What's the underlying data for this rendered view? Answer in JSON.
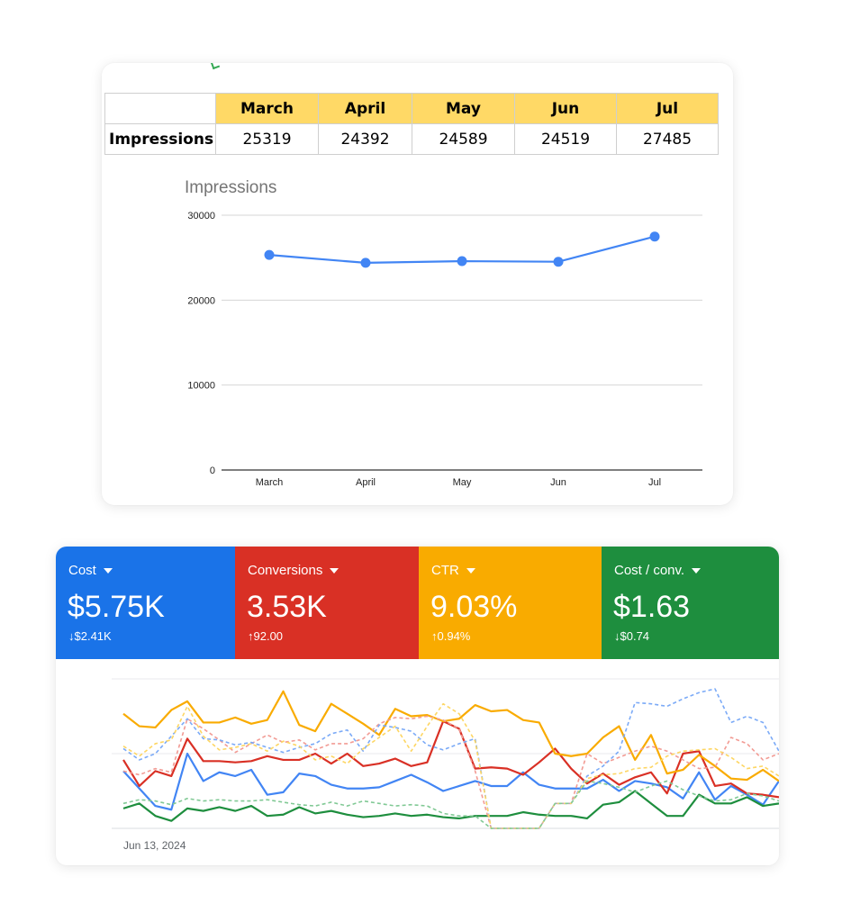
{
  "sheet": {
    "row_label": "Impressions",
    "months": [
      "March",
      "April",
      "May",
      "Jun",
      "Jul"
    ],
    "values": [
      "25319",
      "24392",
      "24589",
      "24519",
      "27485"
    ]
  },
  "chart_data": [
    {
      "type": "line",
      "title": "Impressions",
      "categories": [
        "March",
        "April",
        "May",
        "Jun",
        "Jul"
      ],
      "series": [
        {
          "values": [
            25319,
            24392,
            24589,
            24519,
            27485
          ]
        }
      ],
      "ylim": [
        0,
        30000
      ],
      "yticks": [
        0,
        10000,
        20000,
        30000
      ],
      "grid": true,
      "color": "#4285f4"
    },
    {
      "type": "line",
      "x_start_label": "Jun 13, 2024",
      "grid": true,
      "series": [
        {
          "name": "Cost",
          "color": "#4285f4",
          "style": "solid",
          "values": [
            46,
            32,
            18,
            15,
            60,
            38,
            45,
            42,
            47,
            27,
            29,
            44,
            42,
            35,
            32,
            32,
            33,
            38,
            43,
            37,
            30,
            34,
            38,
            34,
            34,
            45,
            35,
            32,
            32,
            32,
            39,
            30,
            38,
            36,
            33,
            24,
            45,
            23,
            34,
            27,
            19,
            38
          ]
        },
        {
          "name": "Conversions",
          "color": "#d93025",
          "style": "solid",
          "values": [
            55,
            34,
            46,
            42,
            72,
            54,
            54,
            53,
            54,
            58,
            55,
            55,
            60,
            52,
            60,
            50,
            52,
            56,
            50,
            53,
            86,
            80,
            48,
            49,
            48,
            43,
            53,
            64,
            48,
            36,
            44,
            35,
            41,
            45,
            28,
            60,
            62,
            34,
            36,
            28,
            27,
            25
          ]
        },
        {
          "name": "CTR",
          "color": "#f9ab00",
          "style": "solid",
          "values": [
            92,
            82,
            81,
            95,
            102,
            85,
            85,
            89,
            84,
            87,
            110,
            83,
            78,
            100,
            92,
            84,
            75,
            96,
            90,
            91,
            86,
            88,
            99,
            94,
            95,
            87,
            85,
            60,
            58,
            60,
            73,
            82,
            55,
            75,
            44,
            47,
            59,
            50,
            40,
            39,
            47,
            38
          ]
        },
        {
          "name": "Cost / conv.",
          "color": "#1e8e3e",
          "style": "solid",
          "values": [
            16,
            20,
            10,
            6,
            16,
            14,
            17,
            14,
            18,
            10,
            11,
            17,
            12,
            14,
            11,
            9,
            10,
            12,
            10,
            11,
            9,
            8,
            10,
            10,
            10,
            13,
            11,
            10,
            10,
            8,
            19,
            21,
            30,
            20,
            10,
            10,
            27,
            20,
            20,
            25,
            18,
            20
          ]
        },
        {
          "name": "",
          "color": "#f29b94",
          "style": "dashed",
          "values": [
            46,
            43,
            48,
            45,
            88,
            80,
            71,
            61,
            68,
            75,
            69,
            71,
            63,
            68,
            68,
            72,
            84,
            89,
            88,
            90,
            87,
            80,
            46,
            0,
            0,
            0,
            0,
            20,
            20,
            60,
            52,
            57,
            62,
            66,
            62,
            55,
            48,
            49,
            73,
            68,
            55,
            60
          ]
        },
        {
          "name": "",
          "color": "#7baaf7",
          "style": "dashed",
          "values": [
            64,
            55,
            60,
            74,
            88,
            72,
            71,
            67,
            69,
            65,
            61,
            65,
            68,
            76,
            79,
            62,
            83,
            81,
            78,
            67,
            63,
            68,
            72,
            0,
            0,
            0,
            0,
            20,
            20,
            42,
            50,
            62,
            101,
            100,
            98,
            104,
            109,
            112,
            85,
            90,
            85,
            62
          ]
        },
        {
          "name": "",
          "color": "#fdd663",
          "style": "dashed",
          "values": [
            66,
            58,
            68,
            71,
            98,
            74,
            63,
            65,
            68,
            62,
            70,
            66,
            55,
            58,
            52,
            64,
            73,
            82,
            62,
            82,
            100,
            92,
            70,
            0,
            0,
            0,
            0,
            20,
            20,
            40,
            43,
            44,
            48,
            49,
            58,
            62,
            63,
            64,
            57,
            48,
            50,
            42
          ]
        },
        {
          "name": "",
          "color": "#81c995",
          "style": "dashed",
          "values": [
            20,
            23,
            22,
            19,
            24,
            22,
            23,
            22,
            22,
            23,
            21,
            19,
            18,
            21,
            18,
            22,
            20,
            18,
            19,
            18,
            12,
            10,
            10,
            0,
            0,
            0,
            0,
            20,
            20,
            38,
            36,
            33,
            29,
            34,
            38,
            31,
            26,
            22,
            23,
            28,
            26,
            22
          ]
        }
      ]
    }
  ],
  "metrics": [
    {
      "label": "Cost",
      "value": "$5.75K",
      "delta_arrow": "↓",
      "delta": "$2.41K",
      "color": "#1a73e8"
    },
    {
      "label": "Conversions",
      "value": "3.53K",
      "delta_arrow": "↑",
      "delta": "92.00",
      "color": "#d93025"
    },
    {
      "label": "CTR",
      "value": "9.03%",
      "delta_arrow": "↑",
      "delta": "0.94%",
      "color": "#f9ab00"
    },
    {
      "label": "Cost / conv.",
      "value": "$1.63",
      "delta_arrow": "↓",
      "delta": "$0.74",
      "color": "#1e8e3e"
    }
  ]
}
